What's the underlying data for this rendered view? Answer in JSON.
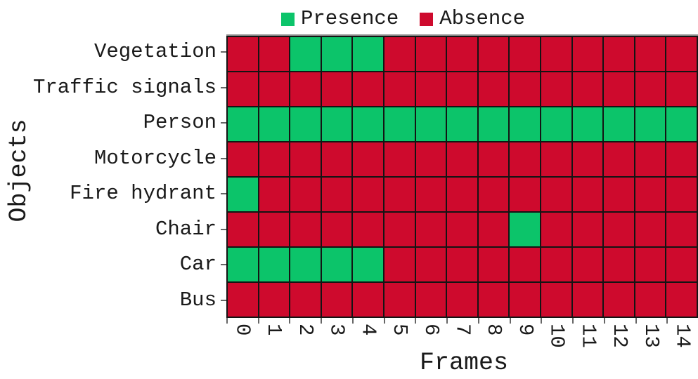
{
  "legend": {
    "items": [
      {
        "label": "Presence",
        "color": "#0cc46a"
      },
      {
        "label": "Absence",
        "color": "#ce0a2d"
      }
    ]
  },
  "axes": {
    "x_label": "Frames",
    "y_label": "Objects"
  },
  "colors": {
    "presence": "#0cc46a",
    "absence": "#ce0a2d",
    "grid_line": "#141414",
    "spine": "#8e8e8e",
    "tick": "#666666"
  },
  "chart_data": {
    "type": "heatmap",
    "title": "",
    "xlabel": "Frames",
    "ylabel": "Objects",
    "x_ticks": [
      "0",
      "1",
      "2",
      "3",
      "4",
      "5",
      "6",
      "7",
      "8",
      "9",
      "10",
      "11",
      "12",
      "13",
      "14"
    ],
    "y_ticks": [
      "Vegetation",
      "Traffic signals",
      "Person",
      "Motorcycle",
      "Fire hydrant",
      "Chair",
      "Car",
      "Bus"
    ],
    "legend": [
      {
        "label": "Presence",
        "value": 1,
        "color": "#0cc46a"
      },
      {
        "label": "Absence",
        "value": 0,
        "color": "#ce0a2d"
      }
    ],
    "values_meaning": "1 = presence (green), 0 = absence (red); rows ordered top to bottom as in y_ticks, columns are frames 0-14",
    "matrix": [
      [
        0,
        0,
        1,
        1,
        1,
        0,
        0,
        0,
        0,
        0,
        0,
        0,
        0,
        0,
        0
      ],
      [
        0,
        0,
        0,
        0,
        0,
        0,
        0,
        0,
        0,
        0,
        0,
        0,
        0,
        0,
        0
      ],
      [
        1,
        1,
        1,
        1,
        1,
        1,
        1,
        1,
        1,
        1,
        1,
        1,
        1,
        1,
        1
      ],
      [
        0,
        0,
        0,
        0,
        0,
        0,
        0,
        0,
        0,
        0,
        0,
        0,
        0,
        0,
        0
      ],
      [
        1,
        0,
        0,
        0,
        0,
        0,
        0,
        0,
        0,
        0,
        0,
        0,
        0,
        0,
        0
      ],
      [
        0,
        0,
        0,
        0,
        0,
        0,
        0,
        0,
        0,
        1,
        0,
        0,
        0,
        0,
        0
      ],
      [
        1,
        1,
        1,
        1,
        1,
        0,
        0,
        0,
        0,
        0,
        0,
        0,
        0,
        0,
        0
      ],
      [
        0,
        0,
        0,
        0,
        0,
        0,
        0,
        0,
        0,
        0,
        0,
        0,
        0,
        0,
        0
      ]
    ]
  }
}
